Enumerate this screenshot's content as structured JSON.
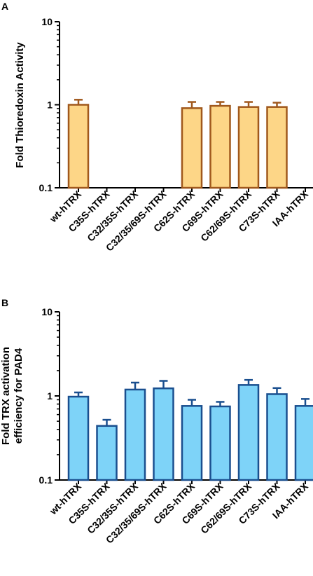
{
  "chart_data": [
    {
      "type": "bar",
      "panel_label": "A",
      "ylabel": "Fold Thioredoxin Activity",
      "ylabel_lines": [
        "Fold Thioredoxin Activity"
      ],
      "yscale": "log",
      "ylim": [
        0.1,
        10
      ],
      "yticks": [
        "0.1",
        "1",
        "10"
      ],
      "categories": [
        "wt-hTRX",
        "C35S-hTRX",
        "C32/35S-hTRX",
        "C32/35/69S-hTRX",
        "C62S-hTRX",
        "C69S-hTRX",
        "C62/69S-hTRX",
        "C73S-hTRX",
        "IAA-hTRX"
      ],
      "values": [
        1.0,
        null,
        null,
        null,
        0.91,
        0.97,
        0.94,
        0.94,
        null
      ],
      "errors": [
        0.15,
        null,
        null,
        null,
        0.17,
        0.11,
        0.14,
        0.12,
        null
      ],
      "bar_fill": "#fdd687",
      "bar_stroke": "#a0581c",
      "grid": false
    },
    {
      "type": "bar",
      "panel_label": "B",
      "ylabel": "Fold TRX activation efficiency for PAD4",
      "ylabel_lines": [
        "Fold TRX activation",
        "efficiency for PAD4"
      ],
      "yscale": "log",
      "ylim": [
        0.1,
        10
      ],
      "yticks": [
        "0.1",
        "1",
        "10"
      ],
      "categories": [
        "wt-hTRX",
        "C35S-hTRX",
        "C32/35S-hTRX",
        "C32/35/69S-hTRX",
        "C62S-hTRX",
        "C69S-hTRX",
        "C62/69S-hTRX",
        "C73S-hTRX",
        "IAA-hTRX"
      ],
      "values": [
        0.98,
        0.44,
        1.19,
        1.23,
        0.76,
        0.75,
        1.35,
        1.05,
        0.76
      ],
      "errors": [
        0.12,
        0.08,
        0.25,
        0.28,
        0.14,
        0.1,
        0.2,
        0.19,
        0.16
      ],
      "bar_fill": "#7ed3f8",
      "bar_stroke": "#1a4f8f",
      "grid": false
    }
  ]
}
